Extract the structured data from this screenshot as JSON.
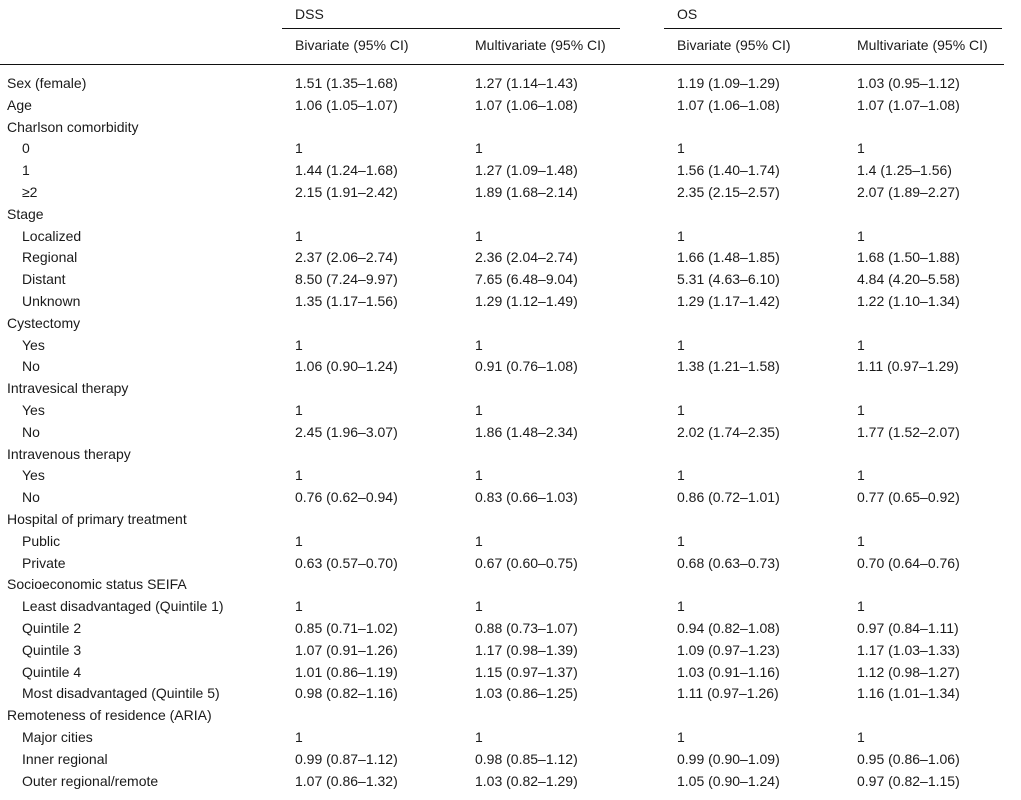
{
  "groups": [
    {
      "label": "DSS",
      "columns": [
        "Bivariate (95% CI)",
        "Multivariate (95% CI)"
      ]
    },
    {
      "label": "OS",
      "columns": [
        "Bivariate (95% CI)",
        "Multivariate (95% CI)"
      ]
    }
  ],
  "rows": [
    {
      "label": "Sex (female)",
      "indent": 0,
      "values": [
        "1.51 (1.35–1.68)",
        "1.27 (1.14–1.43)",
        "1.19 (1.09–1.29)",
        "1.03 (0.95–1.12)"
      ]
    },
    {
      "label": "Age",
      "indent": 0,
      "values": [
        "1.06 (1.05–1.07)",
        "1.07 (1.06–1.08)",
        "1.07 (1.06–1.08)",
        "1.07 (1.07–1.08)"
      ]
    },
    {
      "label": "Charlson comorbidity",
      "indent": 0,
      "values": [
        "",
        "",
        "",
        ""
      ]
    },
    {
      "label": "0",
      "indent": 1,
      "values": [
        "1",
        "1",
        "1",
        "1"
      ]
    },
    {
      "label": "1",
      "indent": 1,
      "values": [
        "1.44 (1.24–1.68)",
        "1.27 (1.09–1.48)",
        "1.56 (1.40–1.74)",
        "1.4 (1.25–1.56)"
      ]
    },
    {
      "label": "≥2",
      "indent": 1,
      "values": [
        "2.15 (1.91–2.42)",
        "1.89 (1.68–2.14)",
        "2.35 (2.15–2.57)",
        "2.07 (1.89–2.27)"
      ]
    },
    {
      "label": "Stage",
      "indent": 0,
      "values": [
        "",
        "",
        "",
        ""
      ]
    },
    {
      "label": "Localized",
      "indent": 1,
      "values": [
        "1",
        "1",
        "1",
        "1"
      ]
    },
    {
      "label": "Regional",
      "indent": 1,
      "values": [
        "2.37 (2.06–2.74)",
        "2.36 (2.04–2.74)",
        "1.66 (1.48–1.85)",
        "1.68 (1.50–1.88)"
      ]
    },
    {
      "label": "Distant",
      "indent": 1,
      "values": [
        "8.50 (7.24–9.97)",
        "7.65 (6.48–9.04)",
        "5.31 (4.63–6.10)",
        "4.84 (4.20–5.58)"
      ]
    },
    {
      "label": "Unknown",
      "indent": 1,
      "values": [
        "1.35 (1.17–1.56)",
        "1.29 (1.12–1.49)",
        "1.29 (1.17–1.42)",
        "1.22 (1.10–1.34)"
      ]
    },
    {
      "label": "Cystectomy",
      "indent": 0,
      "values": [
        "",
        "",
        "",
        ""
      ]
    },
    {
      "label": "Yes",
      "indent": 1,
      "values": [
        "1",
        "1",
        "1",
        "1"
      ]
    },
    {
      "label": "No",
      "indent": 1,
      "values": [
        "1.06 (0.90–1.24)",
        "0.91 (0.76–1.08)",
        "1.38 (1.21–1.58)",
        "1.11 (0.97–1.29)"
      ]
    },
    {
      "label": "Intravesical therapy",
      "indent": 0,
      "values": [
        "",
        "",
        "",
        ""
      ]
    },
    {
      "label": "Yes",
      "indent": 1,
      "values": [
        "1",
        "1",
        "1",
        "1"
      ]
    },
    {
      "label": "No",
      "indent": 1,
      "values": [
        "2.45 (1.96–3.07)",
        "1.86 (1.48–2.34)",
        "2.02 (1.74–2.35)",
        "1.77 (1.52–2.07)"
      ]
    },
    {
      "label": "Intravenous therapy",
      "indent": 0,
      "values": [
        "",
        "",
        "",
        ""
      ]
    },
    {
      "label": "Yes",
      "indent": 1,
      "values": [
        "1",
        "1",
        "1",
        "1"
      ]
    },
    {
      "label": "No",
      "indent": 1,
      "values": [
        "0.76 (0.62–0.94)",
        "0.83 (0.66–1.03)",
        "0.86 (0.72–1.01)",
        "0.77 (0.65–0.92)"
      ]
    },
    {
      "label": "Hospital of primary treatment",
      "indent": 0,
      "values": [
        "",
        "",
        "",
        ""
      ]
    },
    {
      "label": "Public",
      "indent": 1,
      "values": [
        "1",
        "1",
        "1",
        "1"
      ]
    },
    {
      "label": "Private",
      "indent": 1,
      "values": [
        "0.63 (0.57–0.70)",
        "0.67 (0.60–0.75)",
        "0.68 (0.63–0.73)",
        "0.70 (0.64–0.76)"
      ]
    },
    {
      "label": "Socioeconomic status SEIFA",
      "indent": 0,
      "values": [
        "",
        "",
        "",
        ""
      ]
    },
    {
      "label": "Least disadvantaged (Quintile 1)",
      "indent": 1,
      "values": [
        "1",
        "1",
        "1",
        "1"
      ]
    },
    {
      "label": "Quintile 2",
      "indent": 1,
      "values": [
        "0.85 (0.71–1.02)",
        "0.88 (0.73–1.07)",
        "0.94 (0.82–1.08)",
        "0.97 (0.84–1.11)"
      ]
    },
    {
      "label": "Quintile 3",
      "indent": 1,
      "values": [
        "1.07 (0.91–1.26)",
        "1.17 (0.98–1.39)",
        "1.09 (0.97–1.23)",
        "1.17 (1.03–1.33)"
      ]
    },
    {
      "label": "Quintile 4",
      "indent": 1,
      "values": [
        "1.01 (0.86–1.19)",
        "1.15 (0.97–1.37)",
        "1.03 (0.91–1.16)",
        "1.12 (0.98–1.27)"
      ]
    },
    {
      "label": "Most disadvantaged (Quintile 5)",
      "indent": 1,
      "values": [
        "0.98 (0.82–1.16)",
        "1.03 (0.86–1.25)",
        "1.11 (0.97–1.26)",
        "1.16 (1.01–1.34)"
      ]
    },
    {
      "label": "Remoteness of residence (ARIA)",
      "indent": 0,
      "values": [
        "",
        "",
        "",
        ""
      ]
    },
    {
      "label": "Major cities",
      "indent": 1,
      "values": [
        "1",
        "1",
        "1",
        "1"
      ]
    },
    {
      "label": "Inner regional",
      "indent": 1,
      "values": [
        "0.99 (0.87–1.12)",
        "0.98 (0.85–1.12)",
        "0.99 (0.90–1.09)",
        "0.95 (0.86–1.06)"
      ]
    },
    {
      "label": "Outer regional/remote",
      "indent": 1,
      "values": [
        "1.07 (0.86–1.32)",
        "1.03 (0.82–1.29)",
        "1.05 (0.90–1.24)",
        "0.97 (0.82–1.15)"
      ]
    }
  ]
}
